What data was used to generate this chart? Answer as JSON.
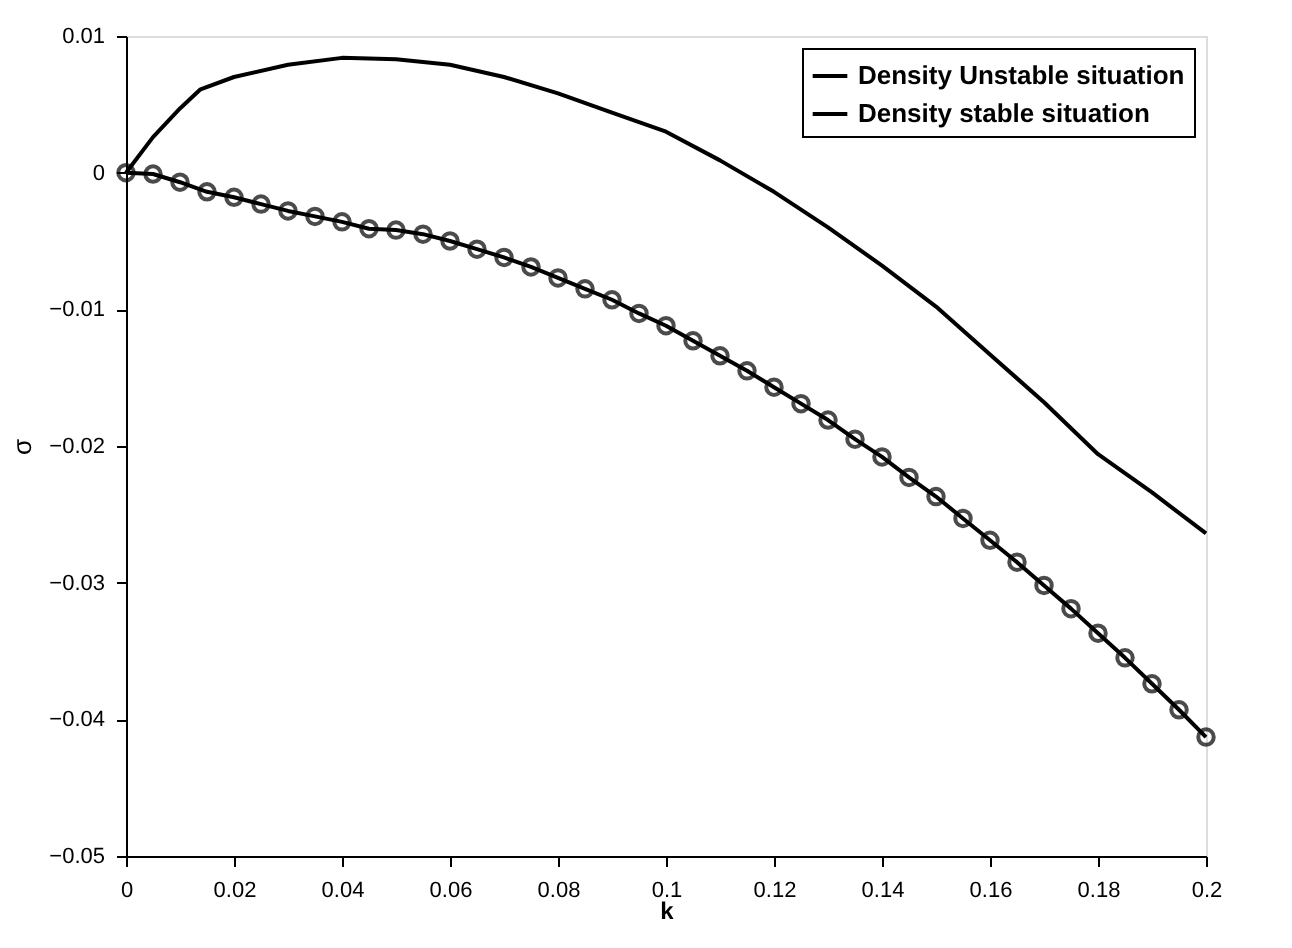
{
  "chart_data": {
    "type": "line",
    "xlabel": "k",
    "ylabel": "σ",
    "xlim": [
      0,
      0.2
    ],
    "xticks": [
      0,
      0.02,
      0.04,
      0.06,
      0.08,
      0.1,
      0.12,
      0.14,
      0.16,
      0.18,
      0.2
    ],
    "ylim": [
      -0.05,
      0.01
    ],
    "yticks": [
      -0.05,
      -0.04,
      -0.03,
      -0.02,
      -0.01,
      0,
      0.01
    ],
    "grid": false,
    "legend": "top right",
    "line_style": "solid",
    "series": [
      {
        "name": "Density Unstable situation",
        "color": "#000000",
        "marker": "none",
        "x": [
          0,
          0.005,
          0.01,
          0.0138,
          0.02,
          0.03,
          0.04,
          0.05,
          0.06,
          0.07,
          0.08,
          0.09,
          0.1,
          0.11,
          0.12,
          0.13,
          0.14,
          0.15,
          0.16,
          0.17,
          0.18,
          0.19,
          0.2
        ],
        "values": [
          0,
          0.0026,
          0.0047,
          0.0061,
          0.007,
          0.0079,
          0.0084,
          0.0083,
          0.0079,
          0.007,
          0.0058,
          0.0044,
          0.003,
          0.0009,
          -0.0014,
          -0.004,
          -0.0068,
          -0.0098,
          -0.0133,
          -0.0168,
          -0.0206,
          -0.0234,
          -0.0264
        ]
      },
      {
        "name": "Density stable situation",
        "color": "#000000",
        "marker": "circle",
        "x": [
          0,
          0.005,
          0.01,
          0.015,
          0.02,
          0.025,
          0.03,
          0.035,
          0.04,
          0.045,
          0.05,
          0.055,
          0.06,
          0.065,
          0.07,
          0.075,
          0.08,
          0.085,
          0.09,
          0.095,
          0.1,
          0.105,
          0.11,
          0.115,
          0.12,
          0.125,
          0.13,
          0.135,
          0.14,
          0.145,
          0.15,
          0.155,
          0.16,
          0.165,
          0.17,
          0.175,
          0.18,
          0.185,
          0.19,
          0.195,
          0.2
        ],
        "values": [
          0,
          -0.0001,
          -0.0007,
          -0.0014,
          -0.0018,
          -0.0023,
          -0.0028,
          -0.0032,
          -0.0036,
          -0.0041,
          -0.0042,
          -0.0045,
          -0.005,
          -0.0056,
          -0.0062,
          -0.0069,
          -0.0077,
          -0.0085,
          -0.0093,
          -0.0103,
          -0.0112,
          -0.0123,
          -0.0134,
          -0.0145,
          -0.0157,
          -0.0169,
          -0.0181,
          -0.0195,
          -0.0208,
          -0.0223,
          -0.0237,
          -0.0253,
          -0.0269,
          -0.0285,
          -0.0302,
          -0.0319,
          -0.0337,
          -0.0355,
          -0.0374,
          -0.0393,
          -0.0413
        ]
      }
    ]
  }
}
